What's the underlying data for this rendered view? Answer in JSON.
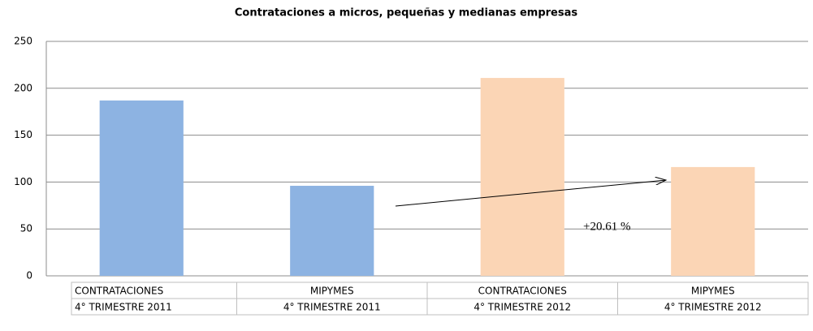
{
  "chart_data": {
    "type": "bar",
    "title": "Contrataciones a micros, pequeñas y medianas empresas",
    "categories": [
      [
        "CONTRATACIONES",
        "4° TRIMESTRE 2011"
      ],
      [
        "MIPYMES",
        "4° TRIMESTRE 2011"
      ],
      [
        "CONTRATACIONES",
        "4° TRIMESTRE 2012"
      ],
      [
        "MIPYMES",
        "4° TRIMESTRE 2012"
      ]
    ],
    "values": [
      187,
      96,
      211,
      116
    ],
    "colors": [
      "#8db3e2",
      "#8db3e2",
      "#fbd5b5",
      "#fbd5b5"
    ],
    "ylim": [
      0,
      250
    ],
    "yticks": [
      0,
      50,
      100,
      150,
      200,
      250
    ],
    "grid": true,
    "annotation": "+20.61 %"
  }
}
